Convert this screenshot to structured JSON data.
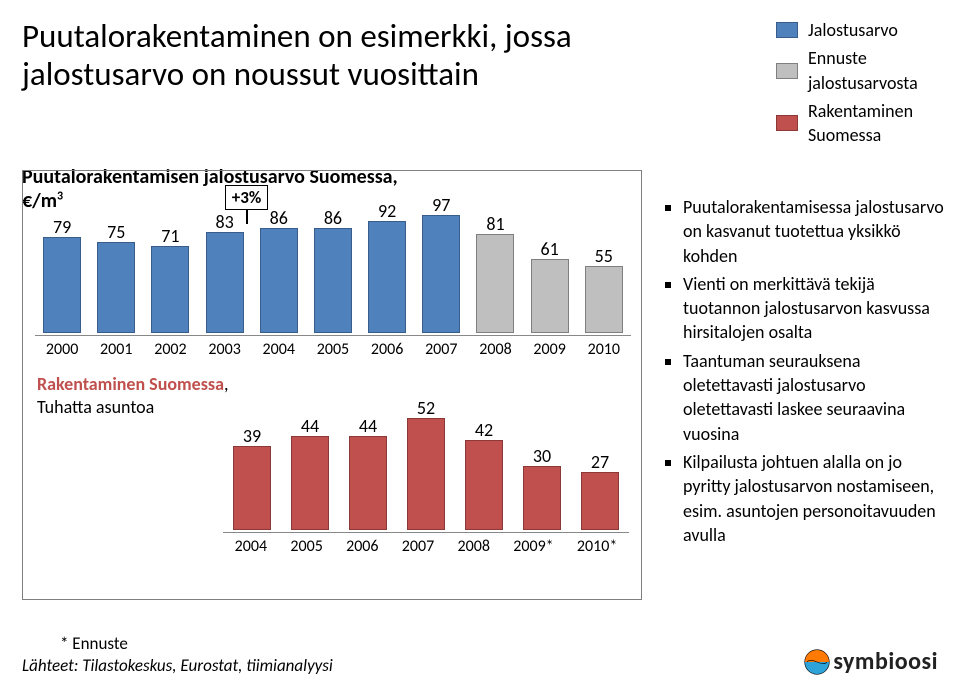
{
  "title": "Puutalorakentaminen on esimerkki, jossa jalostusarvo on noussut vuosittain",
  "title_fontsize": 33,
  "legend": {
    "items": [
      {
        "label": "Jalostusarvo",
        "color": "#4f81bd",
        "border": "#385d8a"
      },
      {
        "label": "Ennuste jalostusarvosta",
        "color": "#bfbfbf",
        "border": "#7f7f7f"
      },
      {
        "label": "Rakentaminen Suomessa",
        "color": "#c0504d",
        "border": "#8c3836"
      }
    ],
    "fontsize": 18
  },
  "subtitle_line1": "Puutalorakentamisen jalostusarvo Suomessa,",
  "subtitle_line2_prefix": "€/m",
  "subtitle_line2_sup": "3",
  "chartbox": {
    "border_color": "#7f7f7f"
  },
  "chart1": {
    "type": "bar",
    "growth_label": "+3%",
    "max": 100,
    "label_fontsize": 18,
    "xlabel_fontsize": 16,
    "bars": [
      {
        "x": "2000",
        "v": 79,
        "color": "#4f81bd",
        "border": "#385d8a"
      },
      {
        "x": "2001",
        "v": 75,
        "color": "#4f81bd",
        "border": "#385d8a"
      },
      {
        "x": "2002",
        "v": 71,
        "color": "#4f81bd",
        "border": "#385d8a"
      },
      {
        "x": "2003",
        "v": 83,
        "color": "#4f81bd",
        "border": "#385d8a"
      },
      {
        "x": "2004",
        "v": 86,
        "color": "#4f81bd",
        "border": "#385d8a"
      },
      {
        "x": "2005",
        "v": 86,
        "color": "#4f81bd",
        "border": "#385d8a"
      },
      {
        "x": "2006",
        "v": 92,
        "color": "#4f81bd",
        "border": "#385d8a"
      },
      {
        "x": "2007",
        "v": 97,
        "color": "#4f81bd",
        "border": "#385d8a"
      },
      {
        "x": "2008",
        "v": 81,
        "color": "#bfbfbf",
        "border": "#7f7f7f"
      },
      {
        "x": "2009",
        "v": 61,
        "color": "#bfbfbf",
        "border": "#7f7f7f"
      },
      {
        "x": "2010",
        "v": 55,
        "color": "#bfbfbf",
        "border": "#7f7f7f"
      }
    ]
  },
  "chart2_title_red": "Rakentaminen Suomessa",
  "chart2_title_red_color": "#c0504d",
  "chart2_title_rest": "Tuhatta asuntoa",
  "chart2": {
    "type": "bar",
    "max": 55,
    "label_fontsize": 18,
    "xlabel_fontsize": 16,
    "bar_color": "#c0504d",
    "bar_border": "#8c3836",
    "bars": [
      {
        "x": "2004",
        "v": 39
      },
      {
        "x": "2005",
        "v": 44
      },
      {
        "x": "2006",
        "v": 44
      },
      {
        "x": "2007",
        "v": 52
      },
      {
        "x": "2008",
        "v": 42
      },
      {
        "x": "2009*",
        "v": 30
      },
      {
        "x": "2010*",
        "v": 27
      }
    ]
  },
  "bullets": [
    "Puutalorakentamisessa jalostusarvo on kasvanut tuotettua yksikkö kohden",
    "Vienti on merkittävä tekijä tuotannon jalostusarvon kasvussa hirsitalojen osalta",
    "Taantuman seurauksena oletettavasti jalostusarvo oletettavasti laskee seuraavina vuosina",
    "Kilpailusta johtuen alalla on jo pyritty jalostusarvon nostamiseen, esim. asuntojen personoitavuuden avulla"
  ],
  "bullets_fontsize": 18,
  "footnote1": "* Ennuste",
  "footnote2": "Lähteet: Tilastokeskus, Eurostat, tiimianalyysi",
  "logo_text": "symbioosi",
  "logo_colors": {
    "top": "#ff7a00",
    "middle": "#ffffff",
    "bottom": "#2ea3d9",
    "outline": "#000000"
  }
}
